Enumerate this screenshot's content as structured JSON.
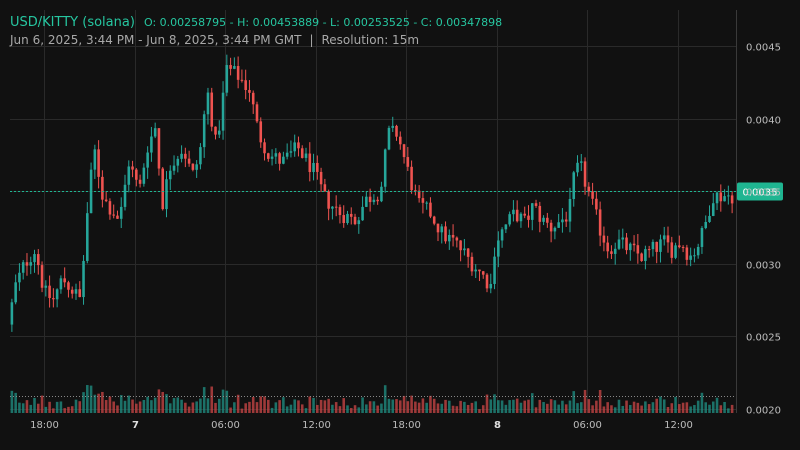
{
  "header": {
    "pair": "USD/KITTY (solana)",
    "ohlc": "O: 0.00258795 - H: 0.00453889 - L: 0.00253525 - C: 0.00347898",
    "range": "Jun 6, 2025, 3:44 PM - Jun 8, 2025, 3:44 PM GMT",
    "separator": "|",
    "resolution": "Resolution: 15m"
  },
  "colors": {
    "up": "#26a69a",
    "down": "#ef5350",
    "up_vol": "#1f8a7e",
    "down_vol": "#c24443",
    "grid": "#2a2a2a",
    "price_tag": "#1fb591"
  },
  "chart_data": {
    "type": "candlestick",
    "title": "USD/KITTY (solana)",
    "resolution": "15m",
    "ylim": [
      0.00197,
      0.00475
    ],
    "y_ticks": [
      {
        "value": 0.0045,
        "label": "0.0045"
      },
      {
        "value": 0.004,
        "label": "0.0040"
      },
      {
        "value": 0.0035,
        "label": "0.0035"
      },
      {
        "value": 0.003,
        "label": "0.0030"
      },
      {
        "value": 0.0025,
        "label": "0.0025"
      },
      {
        "value": 0.002,
        "label": "0.0020"
      }
    ],
    "x_ticks": [
      {
        "t": 2.27,
        "label": "18:00",
        "bold": false
      },
      {
        "t": 8.27,
        "label": "7",
        "bold": true
      },
      {
        "t": 14.27,
        "label": "06:00",
        "bold": false
      },
      {
        "t": 20.27,
        "label": "12:00",
        "bold": false
      },
      {
        "t": 26.27,
        "label": "18:00",
        "bold": false
      },
      {
        "t": 32.27,
        "label": "8",
        "bold": true
      },
      {
        "t": 38.27,
        "label": "06:00",
        "bold": false
      },
      {
        "t": 44.27,
        "label": "12:00",
        "bold": false
      }
    ],
    "current_price": {
      "value": 0.0035,
      "label": "0.0035"
    },
    "price_keyframes": [
      [
        0.0,
        0.00258
      ],
      [
        0.5,
        0.00285
      ],
      [
        1.1,
        0.003
      ],
      [
        1.8,
        0.0031
      ],
      [
        2.4,
        0.0028
      ],
      [
        3.0,
        0.00275
      ],
      [
        3.6,
        0.0029
      ],
      [
        4.8,
        0.00275
      ],
      [
        5.2,
        0.0033
      ],
      [
        5.7,
        0.0038
      ],
      [
        6.3,
        0.00345
      ],
      [
        7.4,
        0.0033
      ],
      [
        8.0,
        0.0037
      ],
      [
        8.7,
        0.0035
      ],
      [
        9.2,
        0.0038
      ],
      [
        9.8,
        0.00395
      ],
      [
        10.2,
        0.0034
      ],
      [
        10.8,
        0.0037
      ],
      [
        11.6,
        0.0038
      ],
      [
        12.2,
        0.0036
      ],
      [
        12.7,
        0.00375
      ],
      [
        13.2,
        0.0042
      ],
      [
        13.8,
        0.0038
      ],
      [
        14.5,
        0.00435
      ],
      [
        15.2,
        0.0043
      ],
      [
        16.0,
        0.0042
      ],
      [
        16.6,
        0.0039
      ],
      [
        17.3,
        0.00375
      ],
      [
        18.2,
        0.0037
      ],
      [
        19.2,
        0.0038
      ],
      [
        20.2,
        0.00365
      ],
      [
        21.0,
        0.00345
      ],
      [
        22.0,
        0.00335
      ],
      [
        23.0,
        0.0033
      ],
      [
        23.8,
        0.00345
      ],
      [
        24.7,
        0.0035
      ],
      [
        25.2,
        0.0039
      ],
      [
        25.8,
        0.0039
      ],
      [
        26.6,
        0.0036
      ],
      [
        27.2,
        0.0034
      ],
      [
        28.0,
        0.00335
      ],
      [
        28.8,
        0.0032
      ],
      [
        29.6,
        0.00315
      ],
      [
        30.4,
        0.00305
      ],
      [
        31.2,
        0.00295
      ],
      [
        32.0,
        0.00285
      ],
      [
        32.3,
        0.00315
      ],
      [
        32.9,
        0.00325
      ],
      [
        33.6,
        0.00335
      ],
      [
        34.3,
        0.00328
      ],
      [
        34.8,
        0.0034
      ],
      [
        35.4,
        0.0033
      ],
      [
        36.0,
        0.00325
      ],
      [
        36.7,
        0.0033
      ],
      [
        37.2,
        0.00335
      ],
      [
        37.6,
        0.00365
      ],
      [
        38.0,
        0.00365
      ],
      [
        38.6,
        0.00345
      ],
      [
        39.2,
        0.00325
      ],
      [
        39.8,
        0.0031
      ],
      [
        40.4,
        0.00315
      ],
      [
        41.2,
        0.0031
      ],
      [
        42.0,
        0.00305
      ],
      [
        42.8,
        0.0031
      ],
      [
        43.5,
        0.00315
      ],
      [
        44.0,
        0.0031
      ],
      [
        44.6,
        0.00315
      ],
      [
        45.2,
        0.00305
      ],
      [
        45.6,
        0.0031
      ],
      [
        46.0,
        0.0032
      ],
      [
        46.3,
        0.0033
      ],
      [
        46.7,
        0.00347
      ]
    ],
    "span_hours": 48
  }
}
